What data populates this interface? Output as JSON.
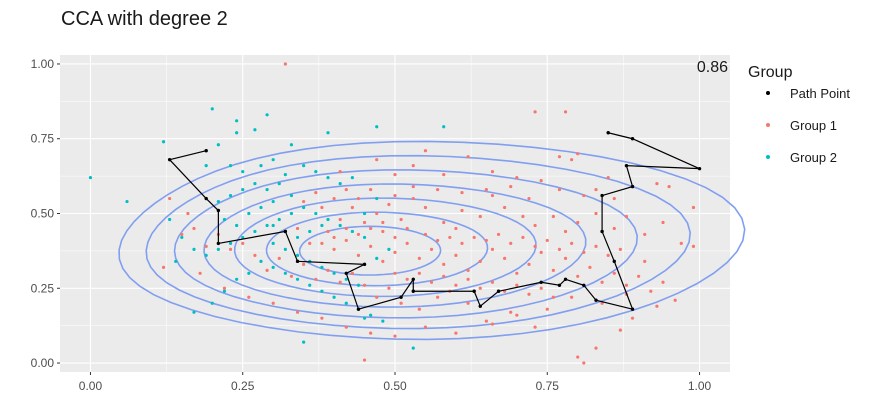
{
  "title": "CCA with degree 2",
  "annotation": "0.86",
  "colors": {
    "panel_bg": "#ebebeb",
    "grid": "#ffffff",
    "group1": "#f8766d",
    "group2": "#00bfc4",
    "path": "#000000",
    "contour": "#819ff0"
  },
  "x_ticks": [
    "0.00",
    "0.25",
    "0.50",
    "0.75",
    "1.00"
  ],
  "y_ticks": [
    "0.00",
    "0.25",
    "0.50",
    "0.75",
    "1.00"
  ],
  "legend": {
    "title": "Group",
    "items": [
      {
        "label": "Path Point",
        "color": "#000000"
      },
      {
        "label": "Group 1",
        "color": "#f8766d"
      },
      {
        "label": "Group 2",
        "color": "#00bfc4"
      }
    ]
  },
  "chart_data": {
    "type": "scatter",
    "title": "CCA with degree 2",
    "xlabel": "",
    "ylabel": "",
    "xlim": [
      -0.05,
      1.05
    ],
    "ylim": [
      -0.03,
      1.03
    ],
    "x_ticks": [
      0,
      0.25,
      0.5,
      0.75,
      1.0
    ],
    "y_ticks": [
      0,
      0.25,
      0.5,
      0.75,
      1.0
    ],
    "annotation": "0.86",
    "grid": true,
    "legend_position": "right",
    "series": [
      {
        "name": "Group 1",
        "points": [
          [
            0.32,
            1.0
          ],
          [
            0.73,
            0.84
          ],
          [
            0.78,
            0.84
          ],
          [
            0.55,
            0.71
          ],
          [
            0.66,
            0.64
          ],
          [
            0.62,
            0.69
          ],
          [
            0.47,
            0.68
          ],
          [
            0.41,
            0.64
          ],
          [
            0.5,
            0.63
          ],
          [
            0.53,
            0.66
          ],
          [
            0.58,
            0.63
          ],
          [
            0.7,
            0.62
          ],
          [
            0.74,
            0.61
          ],
          [
            0.77,
            0.69
          ],
          [
            0.79,
            0.68
          ],
          [
            0.8,
            0.7
          ],
          [
            0.83,
            0.58
          ],
          [
            0.86,
            0.55
          ],
          [
            0.93,
            0.6
          ],
          [
            0.95,
            0.59
          ],
          [
            0.99,
            0.52
          ],
          [
            0.99,
            0.39
          ],
          [
            0.94,
            0.47
          ],
          [
            0.91,
            0.43
          ],
          [
            0.88,
            0.49
          ],
          [
            0.86,
            0.45
          ],
          [
            0.83,
            0.5
          ],
          [
            0.8,
            0.47
          ],
          [
            0.78,
            0.44
          ],
          [
            0.76,
            0.49
          ],
          [
            0.73,
            0.46
          ],
          [
            0.71,
            0.49
          ],
          [
            0.68,
            0.52
          ],
          [
            0.66,
            0.56
          ],
          [
            0.64,
            0.49
          ],
          [
            0.61,
            0.51
          ],
          [
            0.6,
            0.45
          ],
          [
            0.58,
            0.47
          ],
          [
            0.55,
            0.52
          ],
          [
            0.53,
            0.55
          ],
          [
            0.51,
            0.48
          ],
          [
            0.49,
            0.53
          ],
          [
            0.47,
            0.5
          ],
          [
            0.45,
            0.47
          ],
          [
            0.43,
            0.52
          ],
          [
            0.41,
            0.48
          ],
          [
            0.39,
            0.44
          ],
          [
            0.38,
            0.52
          ],
          [
            0.36,
            0.4
          ],
          [
            0.34,
            0.45
          ],
          [
            0.4,
            0.38
          ],
          [
            0.42,
            0.41
          ],
          [
            0.44,
            0.36
          ],
          [
            0.46,
            0.39
          ],
          [
            0.48,
            0.34
          ],
          [
            0.5,
            0.37
          ],
          [
            0.52,
            0.4
          ],
          [
            0.54,
            0.35
          ],
          [
            0.56,
            0.38
          ],
          [
            0.58,
            0.33
          ],
          [
            0.6,
            0.36
          ],
          [
            0.62,
            0.31
          ],
          [
            0.64,
            0.34
          ],
          [
            0.66,
            0.38
          ],
          [
            0.68,
            0.35
          ],
          [
            0.7,
            0.3
          ],
          [
            0.72,
            0.33
          ],
          [
            0.74,
            0.37
          ],
          [
            0.76,
            0.31
          ],
          [
            0.78,
            0.35
          ],
          [
            0.8,
            0.29
          ],
          [
            0.82,
            0.32
          ],
          [
            0.84,
            0.27
          ],
          [
            0.86,
            0.3
          ],
          [
            0.88,
            0.26
          ],
          [
            0.9,
            0.29
          ],
          [
            0.92,
            0.24
          ],
          [
            0.94,
            0.27
          ],
          [
            0.96,
            0.21
          ],
          [
            0.93,
            0.19
          ],
          [
            0.89,
            0.15
          ],
          [
            0.87,
            0.11
          ],
          [
            0.83,
            0.05
          ],
          [
            0.8,
            0.02
          ],
          [
            0.81,
            0.0
          ],
          [
            0.73,
            0.12
          ],
          [
            0.69,
            0.17
          ],
          [
            0.66,
            0.13
          ],
          [
            0.62,
            0.2
          ],
          [
            0.59,
            0.24
          ],
          [
            0.57,
            0.22
          ],
          [
            0.54,
            0.18
          ],
          [
            0.51,
            0.2
          ],
          [
            0.49,
            0.25
          ],
          [
            0.47,
            0.22
          ],
          [
            0.45,
            0.26
          ],
          [
            0.43,
            0.3
          ],
          [
            0.41,
            0.27
          ],
          [
            0.39,
            0.31
          ],
          [
            0.37,
            0.28
          ],
          [
            0.35,
            0.33
          ],
          [
            0.33,
            0.29
          ],
          [
            0.31,
            0.35
          ],
          [
            0.29,
            0.31
          ],
          [
            0.27,
            0.36
          ],
          [
            0.25,
            0.4
          ],
          [
            0.23,
            0.38
          ],
          [
            0.21,
            0.43
          ],
          [
            0.19,
            0.39
          ],
          [
            0.17,
            0.45
          ],
          [
            0.16,
            0.5
          ],
          [
            0.15,
            0.43
          ],
          [
            0.13,
            0.55
          ],
          [
            0.12,
            0.32
          ],
          [
            0.18,
            0.3
          ],
          [
            0.22,
            0.25
          ],
          [
            0.26,
            0.22
          ],
          [
            0.3,
            0.2
          ],
          [
            0.34,
            0.17
          ],
          [
            0.38,
            0.15
          ],
          [
            0.42,
            0.12
          ],
          [
            0.46,
            0.1
          ],
          [
            0.45,
            0.01
          ],
          [
            0.5,
            0.09
          ],
          [
            0.55,
            0.12
          ],
          [
            0.6,
            0.1
          ],
          [
            0.65,
            0.14
          ],
          [
            0.7,
            0.16
          ],
          [
            0.75,
            0.18
          ],
          [
            0.79,
            0.22
          ],
          [
            0.84,
            0.2
          ],
          [
            0.88,
            0.23
          ],
          [
            0.91,
            0.34
          ],
          [
            0.97,
            0.4
          ],
          [
            0.85,
            0.62
          ],
          [
            0.81,
            0.56
          ],
          [
            0.77,
            0.58
          ],
          [
            0.72,
            0.55
          ],
          [
            0.69,
            0.59
          ],
          [
            0.65,
            0.58
          ],
          [
            0.61,
            0.57
          ],
          [
            0.57,
            0.58
          ],
          [
            0.53,
            0.59
          ],
          [
            0.5,
            0.56
          ],
          [
            0.46,
            0.58
          ],
          [
            0.44,
            0.55
          ],
          [
            0.42,
            0.58
          ],
          [
            0.4,
            0.55
          ],
          [
            0.37,
            0.57
          ],
          [
            0.35,
            0.54
          ],
          [
            0.48,
            0.44
          ],
          [
            0.5,
            0.42
          ],
          [
            0.52,
            0.45
          ],
          [
            0.55,
            0.43
          ],
          [
            0.57,
            0.41
          ],
          [
            0.59,
            0.42
          ],
          [
            0.61,
            0.4
          ],
          [
            0.63,
            0.42
          ],
          [
            0.65,
            0.41
          ],
          [
            0.67,
            0.43
          ],
          [
            0.69,
            0.4
          ],
          [
            0.71,
            0.42
          ],
          [
            0.73,
            0.39
          ],
          [
            0.75,
            0.41
          ],
          [
            0.77,
            0.38
          ],
          [
            0.79,
            0.4
          ],
          [
            0.81,
            0.37
          ],
          [
            0.83,
            0.39
          ],
          [
            0.85,
            0.36
          ],
          [
            0.87,
            0.38
          ],
          [
            0.38,
            0.4
          ],
          [
            0.4,
            0.42
          ],
          [
            0.42,
            0.45
          ],
          [
            0.44,
            0.43
          ],
          [
            0.46,
            0.45
          ],
          [
            0.48,
            0.47
          ],
          [
            0.5,
            0.3
          ],
          [
            0.52,
            0.28
          ],
          [
            0.54,
            0.3
          ],
          [
            0.56,
            0.27
          ],
          [
            0.58,
            0.29
          ],
          [
            0.6,
            0.26
          ],
          [
            0.62,
            0.28
          ],
          [
            0.64,
            0.25
          ],
          [
            0.66,
            0.27
          ],
          [
            0.68,
            0.24
          ],
          [
            0.7,
            0.26
          ],
          [
            0.72,
            0.23
          ],
          [
            0.74,
            0.25
          ],
          [
            0.76,
            0.22
          ]
        ]
      },
      {
        "name": "Group 2",
        "points": [
          [
            0.0,
            0.62
          ],
          [
            0.06,
            0.54
          ],
          [
            0.12,
            0.74
          ],
          [
            0.2,
            0.85
          ],
          [
            0.24,
            0.81
          ],
          [
            0.29,
            0.83
          ],
          [
            0.33,
            0.73
          ],
          [
            0.39,
            0.77
          ],
          [
            0.47,
            0.79
          ],
          [
            0.58,
            0.79
          ],
          [
            0.27,
            0.78
          ],
          [
            0.24,
            0.77
          ],
          [
            0.21,
            0.73
          ],
          [
            0.19,
            0.66
          ],
          [
            0.23,
            0.66
          ],
          [
            0.25,
            0.64
          ],
          [
            0.28,
            0.66
          ],
          [
            0.3,
            0.68
          ],
          [
            0.32,
            0.63
          ],
          [
            0.35,
            0.66
          ],
          [
            0.37,
            0.64
          ],
          [
            0.39,
            0.62
          ],
          [
            0.41,
            0.6
          ],
          [
            0.43,
            0.62
          ],
          [
            0.31,
            0.6
          ],
          [
            0.29,
            0.58
          ],
          [
            0.27,
            0.6
          ],
          [
            0.25,
            0.58
          ],
          [
            0.23,
            0.56
          ],
          [
            0.21,
            0.54
          ],
          [
            0.33,
            0.56
          ],
          [
            0.35,
            0.52
          ],
          [
            0.37,
            0.5
          ],
          [
            0.39,
            0.48
          ],
          [
            0.41,
            0.46
          ],
          [
            0.43,
            0.44
          ],
          [
            0.45,
            0.42
          ],
          [
            0.33,
            0.5
          ],
          [
            0.31,
            0.48
          ],
          [
            0.29,
            0.46
          ],
          [
            0.27,
            0.44
          ],
          [
            0.25,
            0.42
          ],
          [
            0.23,
            0.4
          ],
          [
            0.21,
            0.38
          ],
          [
            0.19,
            0.36
          ],
          [
            0.17,
            0.38
          ],
          [
            0.15,
            0.42
          ],
          [
            0.13,
            0.48
          ],
          [
            0.14,
            0.34
          ],
          [
            0.3,
            0.4
          ],
          [
            0.32,
            0.38
          ],
          [
            0.34,
            0.36
          ],
          [
            0.36,
            0.34
          ],
          [
            0.38,
            0.32
          ],
          [
            0.4,
            0.3
          ],
          [
            0.42,
            0.28
          ],
          [
            0.44,
            0.26
          ],
          [
            0.28,
            0.34
          ],
          [
            0.3,
            0.32
          ],
          [
            0.32,
            0.3
          ],
          [
            0.34,
            0.28
          ],
          [
            0.36,
            0.26
          ],
          [
            0.38,
            0.24
          ],
          [
            0.4,
            0.22
          ],
          [
            0.42,
            0.2
          ],
          [
            0.44,
            0.18
          ],
          [
            0.46,
            0.16
          ],
          [
            0.48,
            0.14
          ],
          [
            0.26,
            0.3
          ],
          [
            0.24,
            0.28
          ],
          [
            0.22,
            0.24
          ],
          [
            0.2,
            0.2
          ],
          [
            0.17,
            0.17
          ],
          [
            0.35,
            0.07
          ],
          [
            0.53,
            0.05
          ],
          [
            0.45,
            0.15
          ],
          [
            0.47,
            0.35
          ],
          [
            0.49,
            0.38
          ],
          [
            0.45,
            0.5
          ],
          [
            0.47,
            0.55
          ],
          [
            0.26,
            0.5
          ],
          [
            0.28,
            0.52
          ],
          [
            0.3,
            0.54
          ],
          [
            0.22,
            0.48
          ],
          [
            0.24,
            0.46
          ],
          [
            0.36,
            0.44
          ],
          [
            0.38,
            0.46
          ],
          [
            0.34,
            0.42
          ],
          [
            0.32,
            0.44
          ],
          [
            0.3,
            0.46
          ]
        ]
      },
      {
        "name": "Path Point",
        "points": [
          [
            0.85,
            0.77
          ],
          [
            0.89,
            0.75
          ],
          [
            1.0,
            0.65
          ],
          [
            0.88,
            0.66
          ],
          [
            0.89,
            0.59
          ],
          [
            0.84,
            0.56
          ],
          [
            0.84,
            0.44
          ],
          [
            0.86,
            0.34
          ],
          [
            0.89,
            0.18
          ],
          [
            0.83,
            0.21
          ],
          [
            0.81,
            0.26
          ],
          [
            0.78,
            0.28
          ],
          [
            0.77,
            0.26
          ],
          [
            0.74,
            0.27
          ],
          [
            0.67,
            0.24
          ],
          [
            0.64,
            0.19
          ],
          [
            0.63,
            0.24
          ],
          [
            0.53,
            0.24
          ],
          [
            0.53,
            0.28
          ],
          [
            0.51,
            0.22
          ],
          [
            0.44,
            0.18
          ],
          [
            0.42,
            0.3
          ],
          [
            0.45,
            0.33
          ],
          [
            0.34,
            0.34
          ],
          [
            0.32,
            0.44
          ],
          [
            0.21,
            0.4
          ],
          [
            0.21,
            0.51
          ],
          [
            0.19,
            0.55
          ],
          [
            0.13,
            0.68
          ],
          [
            0.19,
            0.71
          ]
        ]
      }
    ],
    "contours": {
      "color": "#819ff0",
      "center": [
        0.45,
        0.37
      ],
      "levels": 7
    }
  }
}
